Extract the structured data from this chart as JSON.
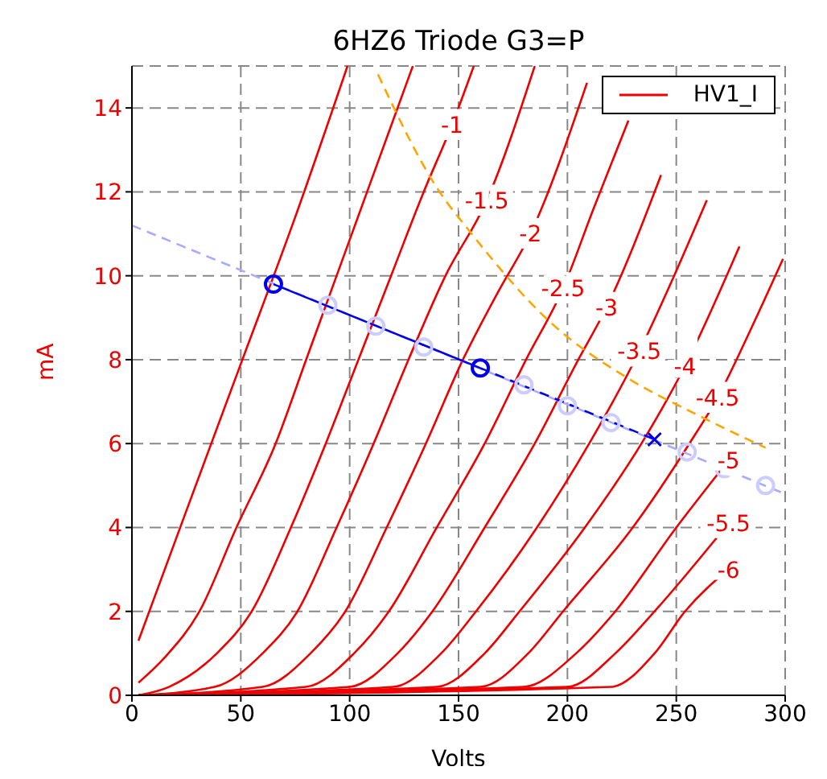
{
  "chart_data": {
    "type": "line",
    "title": "6HZ6 Triode G3=P",
    "xlabel": "Volts",
    "ylabel": "mA",
    "xlim": [
      0,
      300
    ],
    "xticks": [
      0,
      50,
      100,
      150,
      200,
      250,
      300
    ],
    "ylim": [
      0,
      15
    ],
    "yticks": [
      0,
      2,
      4,
      6,
      8,
      10,
      12,
      14
    ],
    "grid": true,
    "legend": "top right",
    "series": [
      {
        "name": "HV1_I",
        "color": "#ee0000",
        "marker": "none",
        "x": [
          3,
          25,
          50,
          75,
          99
        ],
        "values": [
          1.3,
          4.4,
          7.9,
          11.4,
          15
        ]
      },
      {
        "color": "#ee0000",
        "marker": "none",
        "x": [
          3,
          15,
          31,
          48,
          66,
          80,
          94,
          108,
          129
        ],
        "values": [
          0.3,
          0.9,
          2,
          4,
          6,
          8,
          10,
          12,
          15
        ]
      },
      {
        "color": "#ee0000",
        "marker": "none",
        "x": [
          3,
          17,
          39,
          55,
          73,
          89,
          104,
          119,
          134,
          147,
          157
        ],
        "values": [
          0,
          0.2,
          1,
          2,
          4,
          6,
          8,
          10,
          12,
          13.6,
          15
        ]
      },
      {
        "color": "#ee0000",
        "marker": "none",
        "x": [
          3,
          38,
          60,
          76,
          94,
          111,
          127,
          144,
          163,
          185
        ],
        "values": [
          0,
          0.2,
          1,
          2,
          4,
          6,
          8,
          10,
          11.8,
          15
        ]
      },
      {
        "color": "#ee0000",
        "marker": "none",
        "x": [
          3,
          60,
          82,
          98,
          117,
          135,
          152,
          168,
          183,
          209
        ],
        "values": [
          0,
          0.2,
          1,
          2,
          4,
          6,
          8,
          9.6,
          11,
          14.6
        ]
      },
      {
        "color": "#ee0000",
        "marker": "none",
        "x": [
          3,
          80,
          102,
          118,
          140,
          162,
          181,
          198,
          212,
          228
        ],
        "values": [
          0,
          0.2,
          1,
          2,
          4,
          6,
          8,
          9.7,
          11.6,
          13.7
        ]
      },
      {
        "color": "#ee0000",
        "marker": "none",
        "x": [
          3,
          100,
          122,
          138,
          162,
          185,
          205,
          218,
          243
        ],
        "values": [
          0,
          0.2,
          1,
          2,
          4,
          6,
          8,
          9.25,
          12.4
        ]
      },
      {
        "color": "#ee0000",
        "marker": "none",
        "x": [
          3,
          120,
          142,
          158,
          186,
          210,
          233,
          249,
          264
        ],
        "values": [
          0,
          0.2,
          1,
          2,
          4,
          6,
          8.2,
          10,
          11.8
        ]
      },
      {
        "color": "#ee0000",
        "marker": "none",
        "x": [
          3,
          140,
          162,
          178,
          208,
          234,
          254,
          279
        ],
        "values": [
          0,
          0.2,
          1,
          2,
          4,
          6,
          7.85,
          10.7
        ]
      },
      {
        "color": "#ee0000",
        "marker": "none",
        "x": [
          3,
          160,
          182,
          198,
          230,
          256,
          269,
          284,
          299
        ],
        "values": [
          0,
          0.2,
          1,
          2,
          4,
          6,
          7.1,
          8.7,
          10.4
        ]
      },
      {
        "color": "#ee0000",
        "marker": "none",
        "x": [
          3,
          180,
          204,
          222,
          250,
          274
        ],
        "values": [
          0,
          0.2,
          1,
          2,
          4,
          5.6
        ]
      },
      {
        "color": "#ee0000",
        "marker": "none",
        "x": [
          3,
          200,
          222,
          240,
          274
        ],
        "values": [
          0,
          0.2,
          1,
          2,
          4.1
        ]
      },
      {
        "color": "#ee0000",
        "marker": "none",
        "x": [
          3,
          220,
          240,
          254,
          274
        ],
        "values": [
          0,
          0.2,
          1,
          2,
          3
        ]
      },
      {
        "color": "#ffa500",
        "marker": "none",
        "line_style": "dashed",
        "x": [
          113,
          140,
          156,
          192,
          228,
          259,
          291
        ],
        "values": [
          14.8,
          12.1,
          11,
          8.9,
          7.55,
          6.7,
          5.9
        ]
      },
      {
        "color": "#aaaaff",
        "marker": "none",
        "line_style": "dashed",
        "x": [
          0,
          300
        ],
        "values": [
          11.2,
          4.8
        ]
      },
      {
        "type": "scatter",
        "color": "#ccccff",
        "marker": "circle",
        "x": [
          90,
          112,
          134,
          180,
          200,
          220,
          255,
          272,
          291
        ],
        "values": [
          9.3,
          8.8,
          8.3,
          7.4,
          6.9,
          6.5,
          5.8,
          5.4,
          5
        ]
      },
      {
        "color": "#0000ee",
        "marker": "circle",
        "line_style": "solid",
        "x": [
          65,
          160
        ],
        "values": [
          9.8,
          7.8
        ]
      },
      {
        "color": "#0000ee",
        "marker": "none",
        "line_style": "dashed",
        "x": [
          160,
          240
        ],
        "values": [
          7.8,
          6.1
        ]
      },
      {
        "type": "scatter",
        "color": "#0000ee",
        "marker": "cross",
        "x": [
          240
        ],
        "values": [
          6.1
        ]
      }
    ],
    "annotations": [
      {
        "text": "-1",
        "x": 147,
        "y": 13.6
      },
      {
        "text": "-1.5",
        "x": 163,
        "y": 11.8
      },
      {
        "text": "-2",
        "x": 183,
        "y": 11
      },
      {
        "text": "-2.5",
        "x": 198,
        "y": 9.7
      },
      {
        "text": "-3",
        "x": 218,
        "y": 9.25
      },
      {
        "text": "-3.5",
        "x": 233,
        "y": 8.2
      },
      {
        "text": "-4",
        "x": 254,
        "y": 7.85
      },
      {
        "text": "-4.5",
        "x": 269,
        "y": 7.1
      },
      {
        "text": "-5",
        "x": 274,
        "y": 5.6
      },
      {
        "text": "-5.5",
        "x": 274,
        "y": 4.1
      },
      {
        "text": "-6",
        "x": 274,
        "y": 3
      }
    ]
  }
}
